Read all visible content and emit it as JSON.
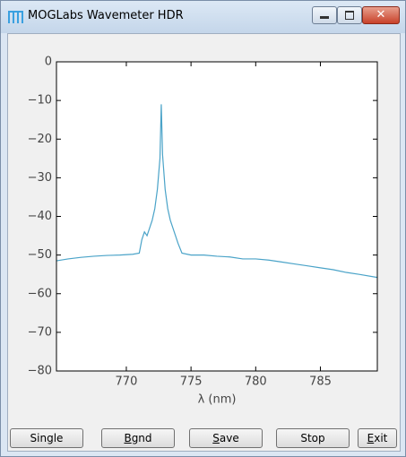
{
  "window": {
    "title": "MOGLabs Wavemeter HDR"
  },
  "chart_data": {
    "type": "line",
    "xlabel": "λ (nm)",
    "x": [
      764.6,
      765.5,
      766.5,
      767.5,
      768.5,
      769.5,
      770.5,
      771.0,
      771.2,
      771.4,
      771.6,
      771.8,
      772.0,
      772.2,
      772.4,
      772.6,
      772.7,
      772.8,
      773.0,
      773.2,
      773.4,
      773.6,
      773.8,
      774.0,
      774.3,
      775,
      776,
      777,
      778,
      779,
      780,
      781,
      782,
      783,
      784,
      785,
      786,
      787,
      788,
      789.4
    ],
    "series": [
      {
        "color": "#4aa3c8",
        "values": [
          -51.5,
          -51,
          -50.6,
          -50.3,
          -50.1,
          -50,
          -49.8,
          -49.5,
          -46,
          -44,
          -45,
          -43,
          -41,
          -38,
          -33,
          -25,
          -11,
          -24,
          -33,
          -38,
          -41,
          -43,
          -45,
          -47,
          -49.5,
          -50,
          -50,
          -50.3,
          -50.5,
          -51,
          -51,
          -51.3,
          -51.8,
          -52.3,
          -52.8,
          -53.3,
          -53.8,
          -54.5,
          -55,
          -55.8
        ]
      }
    ],
    "xlim": [
      764.6,
      789.4
    ],
    "ylim": [
      -80,
      0
    ],
    "xticks": [
      770,
      775,
      780,
      785
    ],
    "yticks": [
      0,
      {
        "value": -10,
        "label": "−10"
      },
      {
        "value": -20,
        "label": "−20"
      },
      {
        "value": -30,
        "label": "−30"
      },
      {
        "value": -40,
        "label": "−40"
      },
      {
        "value": -50,
        "label": "−50"
      },
      {
        "value": -60,
        "label": "−60"
      },
      {
        "value": -70,
        "label": "−70"
      },
      {
        "value": -80,
        "label": "−80"
      }
    ],
    "grid": false
  },
  "buttons": [
    "Single",
    "Bgnd",
    "Save",
    "Stop",
    "Exit"
  ]
}
